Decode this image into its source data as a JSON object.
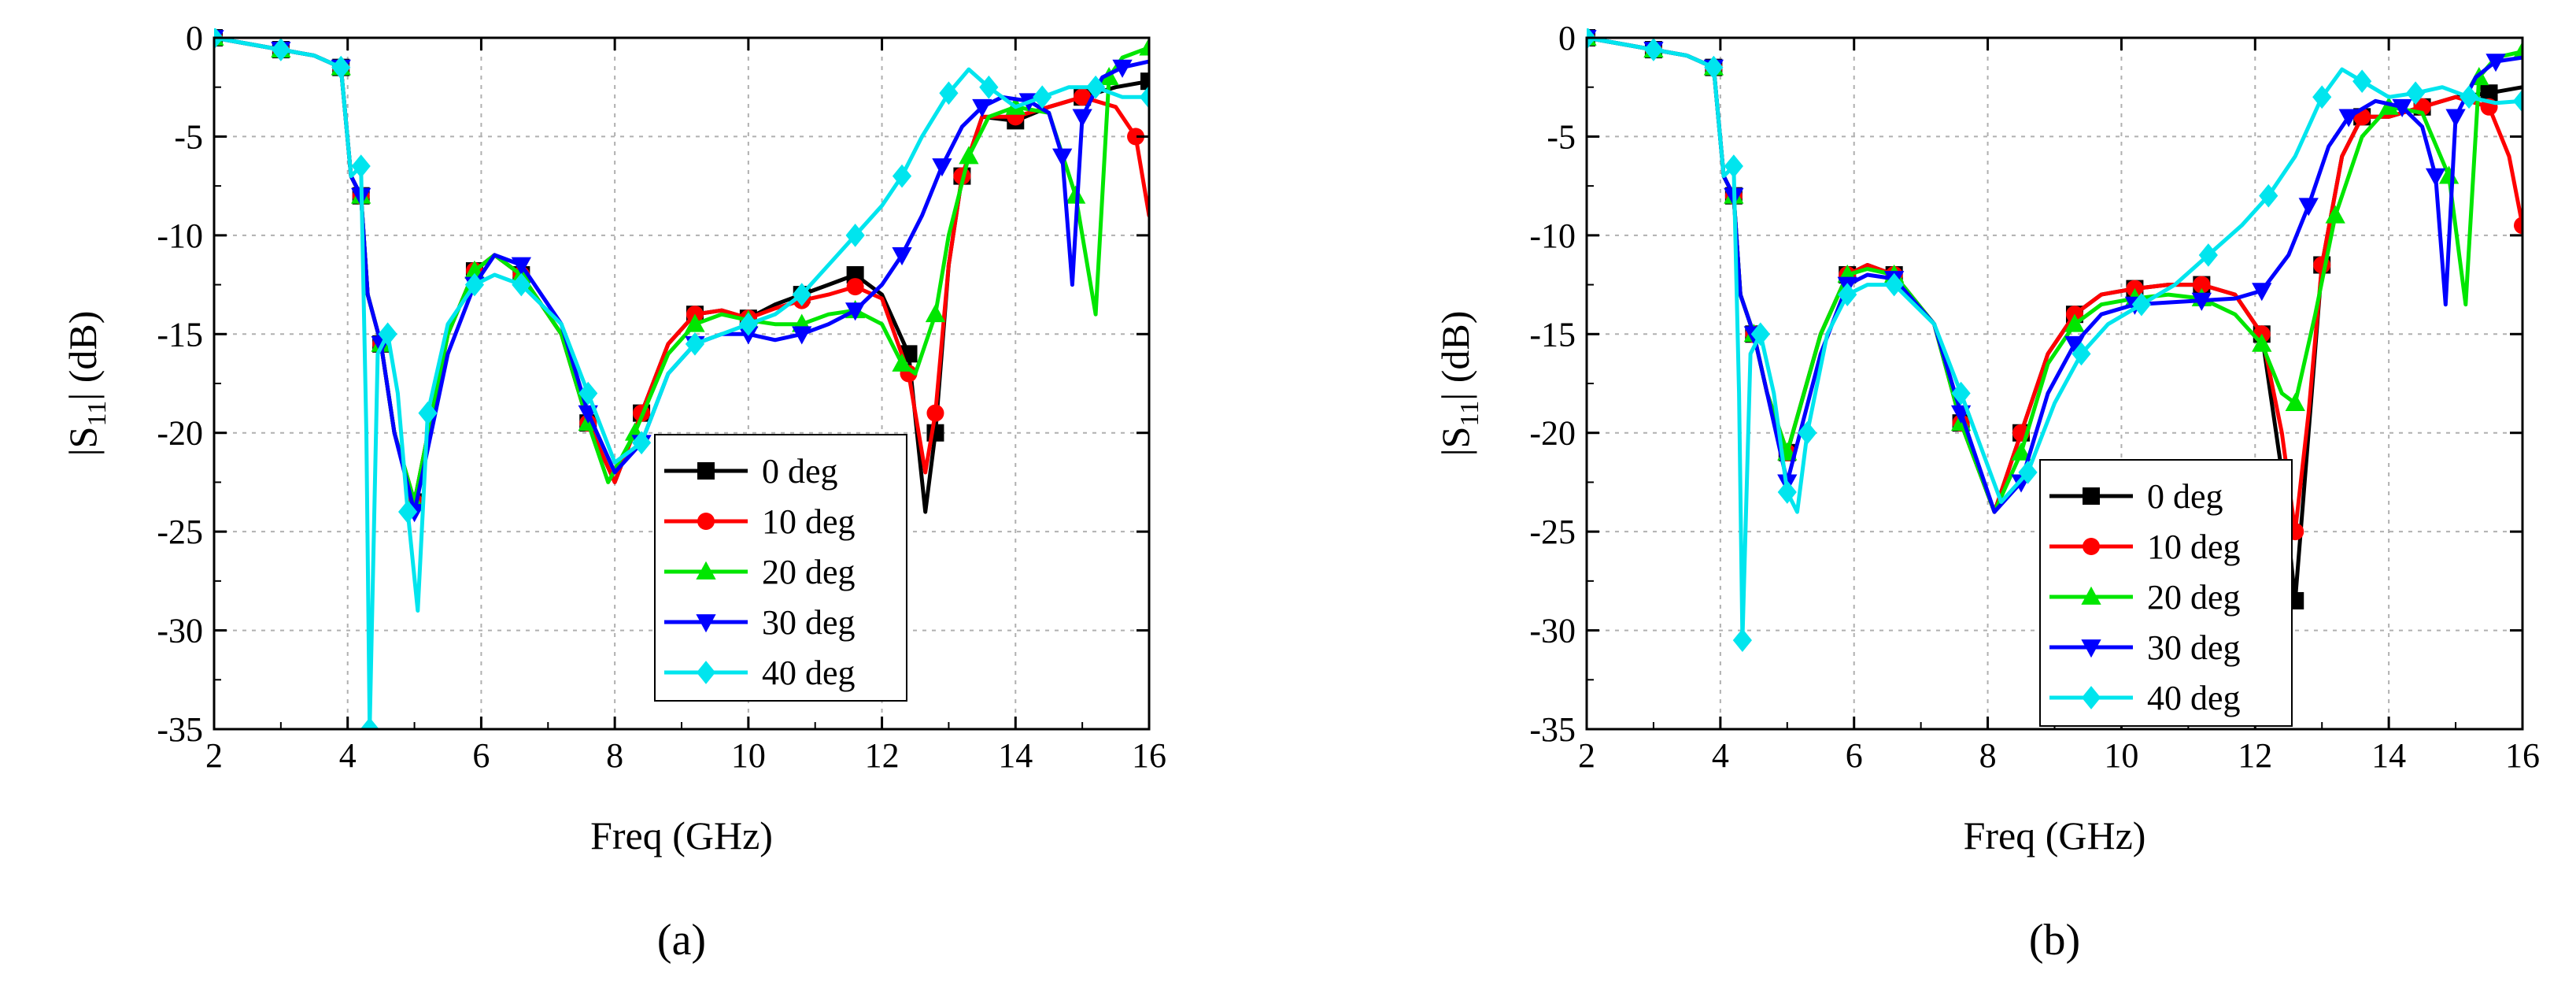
{
  "figure": {
    "panels": [
      "(a)",
      "(b)"
    ]
  },
  "colors": {
    "0 deg": "#000000",
    "10 deg": "#ff0000",
    "20 deg": "#00e600",
    "30 deg": "#0000ff",
    "40 deg": "#00e5ee"
  },
  "chart_data": [
    {
      "type": "line",
      "panel_label": "(a)",
      "xlabel": "Freq (GHz)",
      "ylabel_main": "|S",
      "ylabel_sub": "11",
      "ylabel_tail": "| (dB)",
      "xlim": [
        2,
        16
      ],
      "ylim": [
        -35,
        0
      ],
      "xticks": [
        2,
        4,
        6,
        8,
        10,
        12,
        14,
        16
      ],
      "yticks": [
        0,
        -5,
        -10,
        -15,
        -20,
        -25,
        -30,
        -35
      ],
      "grid": true,
      "legend_position": "center-bottom",
      "series": [
        {
          "name": "0 deg",
          "marker": "square",
          "x": [
            2,
            2.5,
            3,
            3.5,
            3.9,
            4.05,
            4.2,
            4.3,
            4.5,
            4.7,
            5,
            5.5,
            5.9,
            6.2,
            6.6,
            7.2,
            7.6,
            8,
            8.4,
            8.8,
            9.2,
            9.6,
            10,
            10.4,
            10.8,
            11.2,
            11.6,
            12,
            12.4,
            12.65,
            12.8,
            13,
            13.2,
            13.5,
            14,
            14.5,
            15,
            15.5,
            16
          ],
          "y": [
            0,
            -0.3,
            -0.6,
            -0.9,
            -1.5,
            -7,
            -8,
            -13,
            -15.5,
            -20,
            -23.5,
            -15,
            -11.8,
            -11,
            -12,
            -15,
            -19.5,
            -22.5,
            -19,
            -15.5,
            -14,
            -13.8,
            -14.2,
            -13.5,
            -13,
            -12.5,
            -12,
            -13,
            -16,
            -24,
            -20,
            -11.5,
            -7,
            -4,
            -4.2,
            -3.5,
            -3,
            -2.5,
            -2.2
          ]
        },
        {
          "name": "10 deg",
          "marker": "circle",
          "x": [
            2,
            2.5,
            3,
            3.5,
            3.9,
            4.05,
            4.2,
            4.3,
            4.5,
            4.7,
            5,
            5.5,
            5.9,
            6.2,
            6.6,
            7.2,
            7.6,
            8,
            8.4,
            8.8,
            9.2,
            9.6,
            10,
            10.4,
            10.8,
            11.2,
            11.6,
            12,
            12.4,
            12.65,
            12.8,
            13,
            13.2,
            13.5,
            14,
            14.5,
            15,
            15.5,
            15.8,
            16
          ],
          "y": [
            0,
            -0.3,
            -0.6,
            -0.9,
            -1.5,
            -7,
            -8,
            -13,
            -15.5,
            -20,
            -23.5,
            -15,
            -11.8,
            -11,
            -12,
            -15,
            -19.5,
            -22.5,
            -19,
            -15.5,
            -14,
            -13.8,
            -14.2,
            -13.7,
            -13.3,
            -13,
            -12.6,
            -13.2,
            -17,
            -22,
            -19,
            -11.5,
            -7,
            -4,
            -4,
            -3.5,
            -3,
            -3.5,
            -5,
            -9
          ]
        },
        {
          "name": "20 deg",
          "marker": "triangle-up",
          "x": [
            2,
            2.5,
            3,
            3.5,
            3.9,
            4.05,
            4.2,
            4.3,
            4.5,
            4.7,
            5,
            5.5,
            5.9,
            6.2,
            6.6,
            7.2,
            7.6,
            7.9,
            8.3,
            8.8,
            9.2,
            9.6,
            10,
            10.4,
            10.8,
            11.2,
            11.6,
            12,
            12.3,
            12.5,
            12.8,
            13,
            13.3,
            13.6,
            14,
            14.5,
            14.9,
            15.2,
            15.4,
            15.6,
            16
          ],
          "y": [
            0,
            -0.3,
            -0.6,
            -0.9,
            -1.5,
            -7,
            -8,
            -13,
            -15.5,
            -20,
            -23.5,
            -15,
            -11.8,
            -11,
            -12,
            -15,
            -19.5,
            -22.5,
            -20,
            -16,
            -14.5,
            -14,
            -14.3,
            -14.5,
            -14.5,
            -14,
            -13.8,
            -14.5,
            -16.5,
            -17,
            -14,
            -10,
            -6,
            -4,
            -3.5,
            -3.8,
            -8,
            -14,
            -2,
            -1,
            -0.5
          ]
        },
        {
          "name": "30 deg",
          "marker": "triangle-down",
          "x": [
            2,
            2.5,
            3,
            3.5,
            3.9,
            4.05,
            4.2,
            4.3,
            4.5,
            4.7,
            5,
            5.5,
            5.9,
            6.2,
            6.6,
            7.2,
            7.6,
            8,
            8.4,
            8.8,
            9.2,
            9.6,
            10,
            10.4,
            10.8,
            11.2,
            11.6,
            12,
            12.3,
            12.6,
            12.9,
            13.2,
            13.5,
            13.8,
            14.2,
            14.5,
            14.7,
            14.85,
            15,
            15.3,
            15.6,
            16
          ],
          "y": [
            0,
            -0.3,
            -0.6,
            -0.9,
            -1.5,
            -7,
            -8,
            -13,
            -15.5,
            -20,
            -24,
            -16,
            -12.5,
            -11,
            -11.5,
            -14.5,
            -19,
            -22,
            -20.5,
            -17,
            -15.5,
            -15,
            -15,
            -15.3,
            -15,
            -14.5,
            -13.8,
            -12.5,
            -11,
            -9,
            -6.5,
            -4.5,
            -3.5,
            -3,
            -3.2,
            -3.8,
            -6,
            -12.5,
            -4,
            -2,
            -1.5,
            -1.2
          ]
        },
        {
          "name": "40 deg",
          "marker": "diamond",
          "x": [
            2,
            2.5,
            3,
            3.5,
            3.9,
            4.05,
            4.2,
            4.28,
            4.33,
            4.45,
            4.6,
            4.75,
            4.9,
            5.05,
            5.2,
            5.5,
            5.9,
            6.2,
            6.6,
            7.2,
            7.6,
            8,
            8.4,
            8.8,
            9.2,
            9.6,
            10,
            10.4,
            10.8,
            11.2,
            11.6,
            12,
            12.3,
            12.6,
            13,
            13.3,
            13.6,
            14,
            14.4,
            14.8,
            15.2,
            15.6,
            16
          ],
          "y": [
            0,
            -0.3,
            -0.6,
            -0.9,
            -1.5,
            -7,
            -6.5,
            -20,
            -35,
            -16,
            -15,
            -18,
            -24,
            -29,
            -19,
            -14.5,
            -12.5,
            -12,
            -12.5,
            -14.5,
            -18,
            -21.5,
            -20.5,
            -17,
            -15.5,
            -15,
            -14.5,
            -14,
            -13,
            -11.5,
            -10,
            -8.5,
            -7,
            -5,
            -2.8,
            -1.6,
            -2.5,
            -3.5,
            -3,
            -2.5,
            -2.5,
            -3,
            -3
          ]
        }
      ]
    },
    {
      "type": "line",
      "panel_label": "(b)",
      "xlabel": "Freq (GHz)",
      "ylabel_main": "|S",
      "ylabel_sub": "11",
      "ylabel_tail": "| (dB)",
      "xlim": [
        2,
        16
      ],
      "ylim": [
        -35,
        0
      ],
      "xticks": [
        2,
        4,
        6,
        8,
        10,
        12,
        14,
        16
      ],
      "yticks": [
        0,
        -5,
        -10,
        -15,
        -20,
        -25,
        -30,
        -35
      ],
      "grid": true,
      "legend_position": "bottom-right",
      "series": [
        {
          "name": "0 deg",
          "marker": "square",
          "x": [
            2,
            2.5,
            3,
            3.5,
            3.9,
            4.05,
            4.2,
            4.3,
            4.5,
            4.7,
            5,
            5.5,
            5.9,
            6.2,
            6.6,
            7.2,
            7.6,
            8.1,
            8.5,
            8.9,
            9.3,
            9.7,
            10.2,
            10.7,
            11.2,
            11.7,
            12.1,
            12.4,
            12.6,
            12.8,
            13,
            13.3,
            13.6,
            14,
            14.5,
            15,
            15.5,
            16
          ],
          "y": [
            0,
            -0.3,
            -0.6,
            -0.9,
            -1.5,
            -7,
            -8,
            -13,
            -15,
            -18,
            -21,
            -15,
            -12,
            -11.5,
            -12,
            -14.5,
            -19.5,
            -24,
            -20,
            -16,
            -14,
            -13,
            -12.7,
            -12.5,
            -12.5,
            -13,
            -15,
            -22,
            -28.5,
            -20,
            -11.5,
            -6,
            -4,
            -4,
            -3.5,
            -3,
            -2.8,
            -2.5
          ]
        },
        {
          "name": "10 deg",
          "marker": "circle",
          "x": [
            2,
            2.5,
            3,
            3.5,
            3.9,
            4.05,
            4.2,
            4.3,
            4.5,
            4.7,
            5,
            5.5,
            5.9,
            6.2,
            6.6,
            7.2,
            7.6,
            8.1,
            8.5,
            8.9,
            9.3,
            9.7,
            10.2,
            10.7,
            11.2,
            11.7,
            12.1,
            12.4,
            12.6,
            12.8,
            13,
            13.3,
            13.6,
            14,
            14.5,
            15,
            15.5,
            15.8,
            16
          ],
          "y": [
            0,
            -0.3,
            -0.6,
            -0.9,
            -1.5,
            -7,
            -8,
            -13,
            -15,
            -18,
            -21,
            -15,
            -12,
            -11.5,
            -12,
            -14.5,
            -19.5,
            -24,
            -20,
            -16,
            -14,
            -13,
            -12.7,
            -12.5,
            -12.5,
            -13,
            -15,
            -20,
            -25,
            -19,
            -11.5,
            -6,
            -4,
            -4,
            -3.5,
            -3,
            -3.5,
            -6,
            -9.5
          ]
        },
        {
          "name": "20 deg",
          "marker": "triangle-up",
          "x": [
            2,
            2.5,
            3,
            3.5,
            3.9,
            4.05,
            4.2,
            4.3,
            4.5,
            4.7,
            5,
            5.5,
            5.9,
            6.2,
            6.6,
            7.2,
            7.6,
            8.1,
            8.5,
            8.9,
            9.3,
            9.7,
            10.2,
            10.7,
            11.2,
            11.7,
            12.1,
            12.4,
            12.6,
            12.9,
            13.2,
            13.6,
            14,
            14.5,
            14.9,
            15.15,
            15.35,
            15.6,
            16
          ],
          "y": [
            0,
            -0.3,
            -0.6,
            -0.9,
            -1.5,
            -7,
            -8,
            -13,
            -15,
            -18,
            -21,
            -15,
            -12,
            -11.7,
            -12,
            -14.5,
            -19.5,
            -24,
            -21,
            -16.5,
            -14.5,
            -13.5,
            -13.2,
            -13,
            -13.2,
            -14,
            -15.5,
            -18,
            -18.5,
            -14,
            -9,
            -5,
            -3.5,
            -3.8,
            -7,
            -13.5,
            -2,
            -1,
            -0.7
          ]
        },
        {
          "name": "30 deg",
          "marker": "triangle-down",
          "x": [
            2,
            2.5,
            3,
            3.5,
            3.9,
            4.05,
            4.2,
            4.3,
            4.5,
            4.7,
            5,
            5.5,
            5.9,
            6.2,
            6.6,
            7.2,
            7.6,
            8.1,
            8.5,
            8.9,
            9.3,
            9.7,
            10.2,
            10.7,
            11.2,
            11.7,
            12.1,
            12.5,
            12.8,
            13.1,
            13.4,
            13.8,
            14.2,
            14.5,
            14.7,
            14.85,
            15,
            15.3,
            15.6,
            16
          ],
          "y": [
            0,
            -0.3,
            -0.6,
            -0.9,
            -1.5,
            -7,
            -8,
            -13,
            -15,
            -18,
            -22.5,
            -16,
            -12.5,
            -12,
            -12.2,
            -14.5,
            -19,
            -24,
            -22.5,
            -18,
            -15.5,
            -14,
            -13.5,
            -13.4,
            -13.3,
            -13.2,
            -12.8,
            -11,
            -8.5,
            -5.5,
            -4,
            -3.2,
            -3.5,
            -4.5,
            -7,
            -13.5,
            -4,
            -2,
            -1.2,
            -1
          ]
        },
        {
          "name": "40 deg",
          "marker": "diamond",
          "x": [
            2,
            2.5,
            3,
            3.5,
            3.9,
            4.05,
            4.2,
            4.28,
            4.33,
            4.45,
            4.6,
            4.8,
            5,
            5.15,
            5.3,
            5.6,
            5.9,
            6.2,
            6.6,
            7.2,
            7.6,
            8.2,
            8.6,
            9,
            9.4,
            9.8,
            10.3,
            10.8,
            11.3,
            11.8,
            12.2,
            12.6,
            13,
            13.3,
            13.6,
            14,
            14.4,
            14.8,
            15.2,
            15.6,
            16
          ],
          "y": [
            0,
            -0.3,
            -0.6,
            -0.9,
            -1.5,
            -7,
            -6.5,
            -18,
            -30.5,
            -16,
            -15,
            -18,
            -23,
            -24,
            -20,
            -15,
            -13,
            -12.5,
            -12.5,
            -14.5,
            -18,
            -23.5,
            -22,
            -18.5,
            -16,
            -14.5,
            -13.5,
            -12.5,
            -11,
            -9.5,
            -8,
            -6,
            -3,
            -1.6,
            -2.2,
            -3,
            -2.8,
            -2.5,
            -3,
            -3.3,
            -3.2
          ]
        }
      ]
    }
  ]
}
